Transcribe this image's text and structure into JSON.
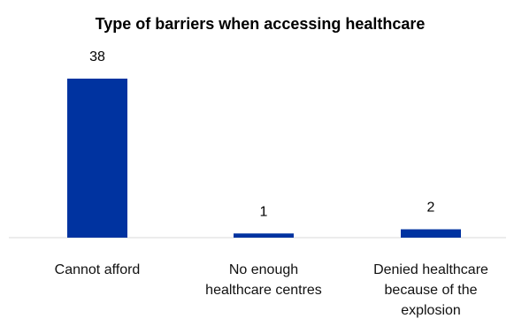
{
  "chart_data": {
    "type": "bar",
    "title": "Type of barriers when accessing  healthcare",
    "categories": [
      "Cannot afford",
      "No enough healthcare centres",
      "Denied healthcare because of the explosion"
    ],
    "category_lines": [
      [
        "Cannot afford"
      ],
      [
        "No enough",
        "healthcare centres"
      ],
      [
        "Denied healthcare",
        "because of the",
        "explosion"
      ]
    ],
    "series": [
      {
        "values": [
          38,
          1,
          2
        ],
        "color": "#0033a0"
      }
    ],
    "ylim": [
      0,
      40
    ],
    "grid": false,
    "legend": "none"
  }
}
